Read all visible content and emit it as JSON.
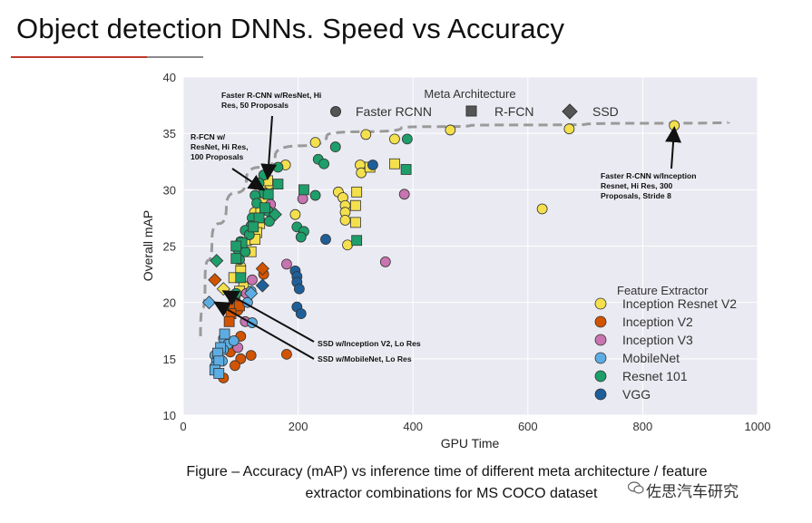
{
  "slide": {
    "title": "Object detection DNNs. Speed vs Accuracy",
    "caption_line1": "Figure – Accuracy (mAP) vs inference time of different meta architecture / feature",
    "caption_line2": "extractor combinations for MS COCO dataset",
    "watermark": "佐思汽车研究"
  },
  "chart_data": {
    "type": "scatter",
    "title": "",
    "xlabel": "GPU Time",
    "ylabel": "Overall mAP",
    "xlim": [
      0,
      1000
    ],
    "ylim": [
      10,
      40
    ],
    "x_ticks": [
      0,
      200,
      400,
      600,
      800,
      1000
    ],
    "y_ticks": [
      10,
      15,
      20,
      25,
      30,
      35,
      40
    ],
    "grid": true,
    "meta_legend": {
      "title": "Meta Architecture",
      "placement": "top",
      "entries": [
        {
          "label": "Faster RCNN",
          "marker": "circle"
        },
        {
          "label": "R-FCN",
          "marker": "square"
        },
        {
          "label": "SSD",
          "marker": "diamond"
        }
      ]
    },
    "feature_legend": {
      "title": "Feature Extractor",
      "placement": "bottom-right",
      "entries": [
        {
          "label": "Inception Resnet V2",
          "color": "#f4e04d"
        },
        {
          "label": "Inception V2",
          "color": "#d35400"
        },
        {
          "label": "Inception V3",
          "color": "#c774b0"
        },
        {
          "label": "MobileNet",
          "color": "#5dade2"
        },
        {
          "label": "Resnet 101",
          "color": "#1e9e6a"
        },
        {
          "label": "VGG",
          "color": "#1f5f99"
        }
      ]
    },
    "frontier": [
      [
        30,
        17
      ],
      [
        38,
        22
      ],
      [
        50,
        25.5
      ],
      [
        75,
        28.5
      ],
      [
        110,
        31
      ],
      [
        160,
        33
      ],
      [
        250,
        34.8
      ],
      [
        380,
        35.5
      ],
      [
        500,
        35.7
      ],
      [
        700,
        35.8
      ],
      [
        950,
        36
      ]
    ],
    "annotations": [
      {
        "text": "Faster R-CNN w/ResNet, Hi Res, 50 Proposals",
        "point": [
          147,
          31
        ]
      },
      {
        "text": "R-FCN w/ ResNet, Hi Res, 100 Proposals",
        "point": [
          140,
          30
        ]
      },
      {
        "text": "Faster R-CNN w/Inception Resnet, Hi Res, 300 Proposals, Stride 8",
        "point": [
          855,
          35.5
        ]
      },
      {
        "text": "SSD w/Inception V2, Lo Res",
        "point": [
          70,
          21
        ]
      },
      {
        "text": "SSD w/MobileNet, Lo Res",
        "point": [
          55,
          20
        ]
      }
    ],
    "points": [
      {
        "x": 855,
        "y": 35.7,
        "m": "circle",
        "f": "Inception Resnet V2"
      },
      {
        "x": 672,
        "y": 35.4,
        "m": "circle",
        "f": "Inception Resnet V2"
      },
      {
        "x": 465,
        "y": 35.3,
        "m": "circle",
        "f": "Inception Resnet V2"
      },
      {
        "x": 318,
        "y": 34.9,
        "m": "circle",
        "f": "Inception Resnet V2"
      },
      {
        "x": 368,
        "y": 34.5,
        "m": "circle",
        "f": "Inception Resnet V2"
      },
      {
        "x": 230,
        "y": 34.2,
        "m": "circle",
        "f": "Inception Resnet V2"
      },
      {
        "x": 178,
        "y": 32.2,
        "m": "circle",
        "f": "Inception Resnet V2"
      },
      {
        "x": 308,
        "y": 32.2,
        "m": "circle",
        "f": "Inception Resnet V2"
      },
      {
        "x": 310,
        "y": 31.5,
        "m": "circle",
        "f": "Inception Resnet V2"
      },
      {
        "x": 270,
        "y": 29.8,
        "m": "circle",
        "f": "Inception Resnet V2"
      },
      {
        "x": 278,
        "y": 29.3,
        "m": "circle",
        "f": "Inception Resnet V2"
      },
      {
        "x": 282,
        "y": 28.6,
        "m": "circle",
        "f": "Inception Resnet V2"
      },
      {
        "x": 282,
        "y": 28.0,
        "m": "circle",
        "f": "Inception Resnet V2"
      },
      {
        "x": 282,
        "y": 27.3,
        "m": "circle",
        "f": "Inception Resnet V2"
      },
      {
        "x": 195,
        "y": 27.8,
        "m": "circle",
        "f": "Inception Resnet V2"
      },
      {
        "x": 625,
        "y": 28.3,
        "m": "circle",
        "f": "Inception Resnet V2"
      },
      {
        "x": 286,
        "y": 25.1,
        "m": "circle",
        "f": "Inception Resnet V2"
      },
      {
        "x": 138,
        "y": 30.3,
        "m": "circle",
        "f": "Inception Resnet V2"
      },
      {
        "x": 150,
        "y": 30.5,
        "m": "circle",
        "f": "Inception Resnet V2"
      },
      {
        "x": 124,
        "y": 28.0,
        "m": "circle",
        "f": "Inception Resnet V2"
      },
      {
        "x": 100,
        "y": 23.2,
        "m": "circle",
        "f": "Inception Resnet V2"
      },
      {
        "x": 105,
        "y": 21.5,
        "m": "circle",
        "f": "Inception Resnet V2"
      },
      {
        "x": 115,
        "y": 25.5,
        "m": "circle",
        "f": "Inception Resnet V2"
      },
      {
        "x": 368,
        "y": 32.3,
        "m": "square",
        "f": "Inception Resnet V2"
      },
      {
        "x": 325,
        "y": 32.0,
        "m": "square",
        "f": "Inception Resnet V2"
      },
      {
        "x": 302,
        "y": 29.8,
        "m": "square",
        "f": "Inception Resnet V2"
      },
      {
        "x": 300,
        "y": 28.6,
        "m": "square",
        "f": "Inception Resnet V2"
      },
      {
        "x": 300,
        "y": 27.1,
        "m": "square",
        "f": "Inception Resnet V2"
      },
      {
        "x": 147,
        "y": 30.8,
        "m": "square",
        "f": "Inception Resnet V2"
      },
      {
        "x": 143,
        "y": 29.2,
        "m": "square",
        "f": "Inception Resnet V2"
      },
      {
        "x": 135,
        "y": 28.2,
        "m": "square",
        "f": "Inception Resnet V2"
      },
      {
        "x": 133,
        "y": 27.0,
        "m": "square",
        "f": "Inception Resnet V2"
      },
      {
        "x": 128,
        "y": 26.2,
        "m": "square",
        "f": "Inception Resnet V2"
      },
      {
        "x": 125,
        "y": 25.6,
        "m": "square",
        "f": "Inception Resnet V2"
      },
      {
        "x": 118,
        "y": 24.5,
        "m": "square",
        "f": "Inception Resnet V2"
      },
      {
        "x": 100,
        "y": 22.8,
        "m": "square",
        "f": "Inception Resnet V2"
      },
      {
        "x": 88,
        "y": 22.2,
        "m": "square",
        "f": "Inception Resnet V2"
      },
      {
        "x": 98,
        "y": 21.0,
        "m": "square",
        "f": "Inception Resnet V2"
      },
      {
        "x": 70,
        "y": 21.2,
        "m": "diamond",
        "f": "Inception Resnet V2"
      },
      {
        "x": 140,
        "y": 22.5,
        "m": "circle",
        "f": "Inception V2"
      },
      {
        "x": 90,
        "y": 20.4,
        "m": "circle",
        "f": "Inception V2"
      },
      {
        "x": 95,
        "y": 19.3,
        "m": "circle",
        "f": "Inception V2"
      },
      {
        "x": 100,
        "y": 17.0,
        "m": "circle",
        "f": "Inception V2"
      },
      {
        "x": 82,
        "y": 15.6,
        "m": "circle",
        "f": "Inception V2"
      },
      {
        "x": 100,
        "y": 15.0,
        "m": "circle",
        "f": "Inception V2"
      },
      {
        "x": 118,
        "y": 15.3,
        "m": "circle",
        "f": "Inception V2"
      },
      {
        "x": 90,
        "y": 14.4,
        "m": "circle",
        "f": "Inception V2"
      },
      {
        "x": 70,
        "y": 13.3,
        "m": "circle",
        "f": "Inception V2"
      },
      {
        "x": 180,
        "y": 15.4,
        "m": "circle",
        "f": "Inception V2"
      },
      {
        "x": 88,
        "y": 19.8,
        "m": "square",
        "f": "Inception V2"
      },
      {
        "x": 98,
        "y": 19.7,
        "m": "square",
        "f": "Inception V2"
      },
      {
        "x": 83,
        "y": 19.0,
        "m": "square",
        "f": "Inception V2"
      },
      {
        "x": 80,
        "y": 18.3,
        "m": "square",
        "f": "Inception V2"
      },
      {
        "x": 55,
        "y": 22.0,
        "m": "diamond",
        "f": "Inception V2"
      },
      {
        "x": 138,
        "y": 23.0,
        "m": "diamond",
        "f": "Inception V2"
      },
      {
        "x": 208,
        "y": 29.2,
        "m": "circle",
        "f": "Inception V3"
      },
      {
        "x": 152,
        "y": 28.7,
        "m": "circle",
        "f": "Inception V3"
      },
      {
        "x": 120,
        "y": 22.0,
        "m": "circle",
        "f": "Inception V3"
      },
      {
        "x": 180,
        "y": 23.4,
        "m": "circle",
        "f": "Inception V3"
      },
      {
        "x": 385,
        "y": 29.6,
        "m": "circle",
        "f": "Inception V3"
      },
      {
        "x": 352,
        "y": 23.6,
        "m": "circle",
        "f": "Inception V3"
      },
      {
        "x": 108,
        "y": 18.3,
        "m": "circle",
        "f": "Inception V3"
      },
      {
        "x": 95,
        "y": 16.0,
        "m": "circle",
        "f": "Inception V3"
      },
      {
        "x": 110,
        "y": 20.8,
        "m": "circle",
        "f": "Inception V3"
      },
      {
        "x": 70,
        "y": 16.8,
        "m": "circle",
        "f": "MobileNet"
      },
      {
        "x": 78,
        "y": 16.3,
        "m": "circle",
        "f": "MobileNet"
      },
      {
        "x": 70,
        "y": 15.8,
        "m": "circle",
        "f": "MobileNet"
      },
      {
        "x": 55,
        "y": 15.3,
        "m": "circle",
        "f": "MobileNet"
      },
      {
        "x": 58,
        "y": 14.8,
        "m": "circle",
        "f": "MobileNet"
      },
      {
        "x": 68,
        "y": 14.8,
        "m": "circle",
        "f": "MobileNet"
      },
      {
        "x": 55,
        "y": 14.3,
        "m": "circle",
        "f": "MobileNet"
      },
      {
        "x": 88,
        "y": 16.6,
        "m": "circle",
        "f": "MobileNet"
      },
      {
        "x": 120,
        "y": 18.2,
        "m": "circle",
        "f": "MobileNet"
      },
      {
        "x": 112,
        "y": 20.0,
        "m": "circle",
        "f": "MobileNet"
      },
      {
        "x": 118,
        "y": 21.0,
        "m": "circle",
        "f": "MobileNet"
      },
      {
        "x": 72,
        "y": 17.2,
        "m": "square",
        "f": "MobileNet"
      },
      {
        "x": 65,
        "y": 16.0,
        "m": "square",
        "f": "MobileNet"
      },
      {
        "x": 60,
        "y": 15.5,
        "m": "square",
        "f": "MobileNet"
      },
      {
        "x": 62,
        "y": 14.8,
        "m": "square",
        "f": "MobileNet"
      },
      {
        "x": 55,
        "y": 14.0,
        "m": "square",
        "f": "MobileNet"
      },
      {
        "x": 62,
        "y": 13.7,
        "m": "square",
        "f": "MobileNet"
      },
      {
        "x": 45,
        "y": 20.0,
        "m": "diamond",
        "f": "MobileNet"
      },
      {
        "x": 118,
        "y": 20.8,
        "m": "diamond",
        "f": "MobileNet"
      },
      {
        "x": 390,
        "y": 34.5,
        "m": "circle",
        "f": "Resnet 101"
      },
      {
        "x": 265,
        "y": 33.8,
        "m": "circle",
        "f": "Resnet 101"
      },
      {
        "x": 235,
        "y": 32.7,
        "m": "circle",
        "f": "Resnet 101"
      },
      {
        "x": 245,
        "y": 32.3,
        "m": "circle",
        "f": "Resnet 101"
      },
      {
        "x": 165,
        "y": 32.0,
        "m": "circle",
        "f": "Resnet 101"
      },
      {
        "x": 140,
        "y": 31.3,
        "m": "circle",
        "f": "Resnet 101"
      },
      {
        "x": 132,
        "y": 30.6,
        "m": "circle",
        "f": "Resnet 101"
      },
      {
        "x": 140,
        "y": 29.7,
        "m": "circle",
        "f": "Resnet 101"
      },
      {
        "x": 125,
        "y": 29.5,
        "m": "circle",
        "f": "Resnet 101"
      },
      {
        "x": 128,
        "y": 28.8,
        "m": "circle",
        "f": "Resnet 101"
      },
      {
        "x": 148,
        "y": 28.1,
        "m": "circle",
        "f": "Resnet 101"
      },
      {
        "x": 120,
        "y": 27.5,
        "m": "circle",
        "f": "Resnet 101"
      },
      {
        "x": 150,
        "y": 27.2,
        "m": "circle",
        "f": "Resnet 101"
      },
      {
        "x": 118,
        "y": 26.8,
        "m": "circle",
        "f": "Resnet 101"
      },
      {
        "x": 108,
        "y": 26.4,
        "m": "circle",
        "f": "Resnet 101"
      },
      {
        "x": 115,
        "y": 26.0,
        "m": "circle",
        "f": "Resnet 101"
      },
      {
        "x": 100,
        "y": 25.4,
        "m": "circle",
        "f": "Resnet 101"
      },
      {
        "x": 95,
        "y": 24.7,
        "m": "circle",
        "f": "Resnet 101"
      },
      {
        "x": 108,
        "y": 24.5,
        "m": "circle",
        "f": "Resnet 101"
      },
      {
        "x": 98,
        "y": 23.8,
        "m": "circle",
        "f": "Resnet 101"
      },
      {
        "x": 198,
        "y": 26.7,
        "m": "circle",
        "f": "Resnet 101"
      },
      {
        "x": 210,
        "y": 26.3,
        "m": "circle",
        "f": "Resnet 101"
      },
      {
        "x": 205,
        "y": 25.8,
        "m": "circle",
        "f": "Resnet 101"
      },
      {
        "x": 230,
        "y": 29.5,
        "m": "circle",
        "f": "Resnet 101"
      },
      {
        "x": 92,
        "y": 20.8,
        "m": "circle",
        "f": "Resnet 101"
      },
      {
        "x": 388,
        "y": 31.8,
        "m": "square",
        "f": "Resnet 101"
      },
      {
        "x": 210,
        "y": 30.0,
        "m": "square",
        "f": "Resnet 101"
      },
      {
        "x": 302,
        "y": 25.5,
        "m": "square",
        "f": "Resnet 101"
      },
      {
        "x": 165,
        "y": 30.5,
        "m": "square",
        "f": "Resnet 101"
      },
      {
        "x": 148,
        "y": 29.6,
        "m": "square",
        "f": "Resnet 101"
      },
      {
        "x": 142,
        "y": 28.4,
        "m": "square",
        "f": "Resnet 101"
      },
      {
        "x": 132,
        "y": 27.5,
        "m": "square",
        "f": "Resnet 101"
      },
      {
        "x": 122,
        "y": 26.7,
        "m": "square",
        "f": "Resnet 101"
      },
      {
        "x": 102,
        "y": 25.3,
        "m": "square",
        "f": "Resnet 101"
      },
      {
        "x": 92,
        "y": 25.0,
        "m": "square",
        "f": "Resnet 101"
      },
      {
        "x": 92,
        "y": 23.9,
        "m": "square",
        "f": "Resnet 101"
      },
      {
        "x": 100,
        "y": 22.2,
        "m": "square",
        "f": "Resnet 101"
      },
      {
        "x": 58,
        "y": 23.7,
        "m": "diamond",
        "f": "Resnet 101"
      },
      {
        "x": 160,
        "y": 27.8,
        "m": "diamond",
        "f": "Resnet 101"
      },
      {
        "x": 330,
        "y": 32.2,
        "m": "circle",
        "f": "VGG"
      },
      {
        "x": 195,
        "y": 22.8,
        "m": "circle",
        "f": "VGG"
      },
      {
        "x": 198,
        "y": 22.3,
        "m": "circle",
        "f": "VGG"
      },
      {
        "x": 198,
        "y": 21.8,
        "m": "circle",
        "f": "VGG"
      },
      {
        "x": 202,
        "y": 21.2,
        "m": "circle",
        "f": "VGG"
      },
      {
        "x": 198,
        "y": 19.6,
        "m": "circle",
        "f": "VGG"
      },
      {
        "x": 205,
        "y": 19.0,
        "m": "circle",
        "f": "VGG"
      },
      {
        "x": 248,
        "y": 25.6,
        "m": "circle",
        "f": "VGG"
      },
      {
        "x": 138,
        "y": 21.5,
        "m": "diamond",
        "f": "VGG"
      }
    ]
  }
}
